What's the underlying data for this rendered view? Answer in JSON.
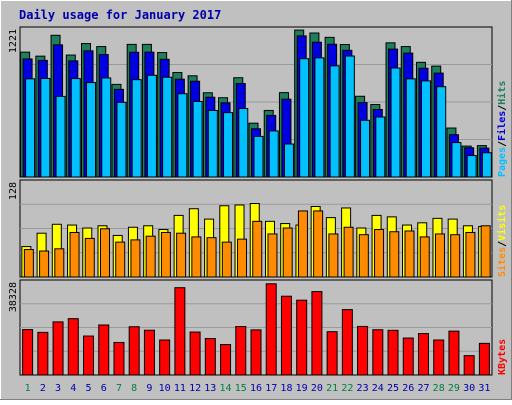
{
  "chart_data": {
    "type": "bar",
    "title": "Daily usage for January 2017",
    "colors": {
      "background": "#c0c0c0",
      "hits": "#1f7f5a",
      "files": "#0000e0",
      "pages": "#00c0ff",
      "visits": "#ffff00",
      "sites": "#ff8c00",
      "kbytes": "#ff0000",
      "title": "#0000aa",
      "weekend_day": "#008040",
      "weekday": "#0000aa"
    },
    "days": [
      "1",
      "2",
      "3",
      "4",
      "5",
      "6",
      "7",
      "8",
      "9",
      "10",
      "11",
      "12",
      "13",
      "14",
      "15",
      "16",
      "17",
      "18",
      "19",
      "20",
      "21",
      "22",
      "23",
      "24",
      "25",
      "26",
      "27",
      "28",
      "29",
      "30",
      "31"
    ],
    "weekend_days": [
      1,
      7,
      8,
      14,
      15,
      21,
      22,
      28,
      29
    ],
    "panels": [
      {
        "id": "traffic",
        "max_label": "1221",
        "ymax": 1221,
        "legend": [
          "Pages",
          "Files",
          "Hits"
        ],
        "legend_seps": [
          "/",
          "/"
        ],
        "legend_colors": [
          "#00c0ff",
          "#0000e0",
          "#1f7f5a"
        ],
        "series": [
          {
            "name": "Hits",
            "color": "#1f7f5a",
            "values": [
              1030,
              997,
              1169,
              1006,
              1101,
              1076,
              764,
              1094,
              1094,
              1027,
              862,
              835,
              695,
              654,
              819,
              444,
              549,
              696,
              1212,
              1188,
              1152,
              1093,
              666,
              598,
              1107,
              1076,
              946,
              915,
              404,
              255,
              259
            ]
          },
          {
            "name": "Files",
            "color": "#0000e0",
            "values": [
              974,
              962,
              1090,
              958,
              1041,
              1010,
              723,
              1029,
              1030,
              971,
              807,
              790,
              658,
              612,
              771,
              398,
              508,
              642,
              1164,
              1112,
              1095,
              1045,
              614,
              557,
              1055,
              1022,
              897,
              857,
              349,
              241,
              238
            ]
          },
          {
            "name": "Pages",
            "color": "#00c0ff",
            "values": [
              810,
              813,
              665,
              812,
              779,
              817,
              616,
              803,
              839,
              823,
              687,
              623,
              549,
              531,
              565,
              335,
              380,
              272,
              976,
              983,
              917,
              998,
              468,
              495,
              899,
              810,
              793,
              745,
              284,
              177,
              200
            ]
          }
        ]
      },
      {
        "id": "visitors",
        "max_label": "128",
        "ymax": 128,
        "legend": [
          "Sites",
          "Visits"
        ],
        "legend_seps": [
          "/"
        ],
        "legend_colors": [
          "#ff8c00",
          "#ffff00"
        ],
        "series": [
          {
            "name": "Visits",
            "color": "#ffff00",
            "values": [
              41,
              59,
              71,
              70,
              66,
              69,
              56,
              67,
              69,
              64,
              83,
              92,
              78,
              96,
              97,
              99,
              75,
              72,
              70,
              95,
              80,
              93,
              66,
              83,
              81,
              70,
              73,
              79,
              78,
              69,
              68
            ]
          },
          {
            "name": "Sites",
            "color": "#ff8c00",
            "values": [
              37,
              35,
              38,
              60,
              52,
              65,
              47,
              50,
              55,
              60,
              59,
              54,
              53,
              47,
              51,
              75,
              58,
              66,
              89,
              89,
              58,
              67,
              57,
              64,
              61,
              62,
              54,
              58,
              57,
              60,
              69
            ]
          }
        ]
      },
      {
        "id": "kbytes",
        "max_label": "38328",
        "ymax": 38328,
        "legend": [
          "KBytes"
        ],
        "legend_seps": [],
        "legend_colors": [
          "#ff0000"
        ],
        "series": [
          {
            "name": "KBytes",
            "color": "#ff0000",
            "values": [
              18712,
              17566,
              21889,
              23212,
              16055,
              20615,
              13414,
              19890,
              18451,
              14425,
              35989,
              17695,
              15024,
              12556,
              19976,
              18593,
              37587,
              32468,
              30833,
              34373,
              17851,
              26950,
              20016,
              18653,
              18407,
              15222,
              17059,
              14425,
              18075,
              7971,
              13037
            ]
          }
        ]
      }
    ]
  }
}
